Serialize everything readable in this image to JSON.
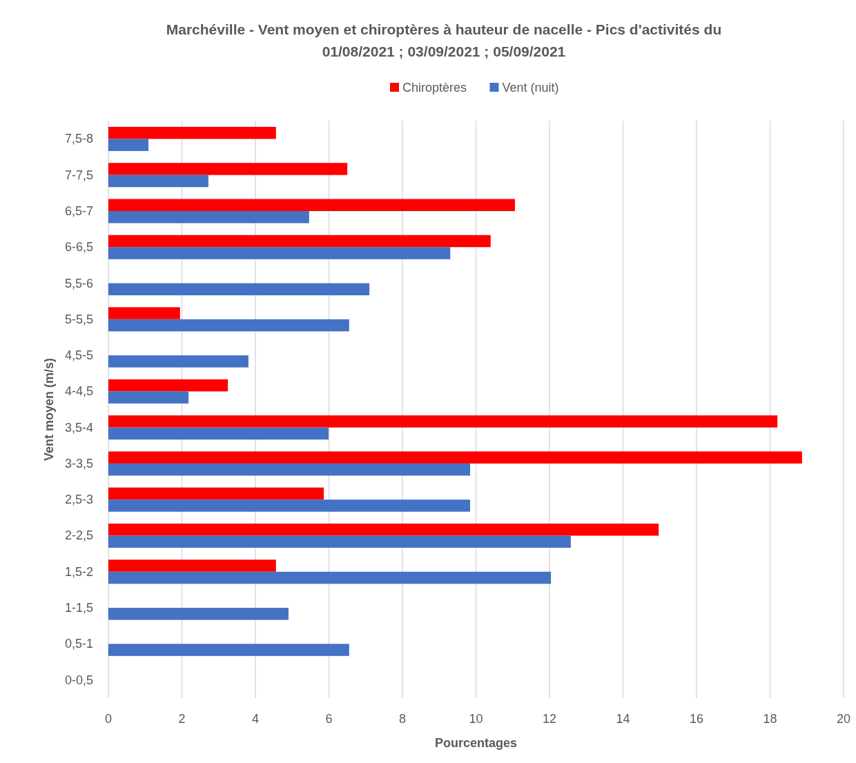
{
  "chart_data": {
    "type": "bar",
    "orientation": "horizontal",
    "title": "Marchéville - Vent moyen et chiroptères à hauteur de nacelle - Pics d'activités du 01/08/2021 ; 03/09/2021 ;  05/09/2021",
    "xlabel": "Pourcentages",
    "ylabel": "Vent moyen (m/s)",
    "categories": [
      "7,5-8",
      "7-7,5",
      "6,5-7",
      "6-6,5",
      "5,5-6",
      "5-5,5",
      "4,5-5",
      "4-4,5",
      "3,5-4",
      "3-3,5",
      "2,5-3",
      "2-2,5",
      "1,5-2",
      "1-1,5",
      "0,5-1",
      "0-0,5"
    ],
    "series": [
      {
        "name": "Chiroptères",
        "color": "#ff0000",
        "values": [
          4.56,
          6.5,
          11.06,
          10.4,
          0,
          1.95,
          0,
          3.25,
          18.2,
          18.87,
          5.86,
          14.97,
          4.56,
          0,
          0,
          0
        ]
      },
      {
        "name": "Vent (nuit)",
        "color": "#4472c4",
        "values": [
          1.09,
          2.72,
          5.46,
          9.3,
          7.1,
          6.55,
          3.81,
          2.18,
          5.99,
          9.84,
          9.84,
          12.58,
          12.04,
          4.9,
          6.55,
          0
        ]
      }
    ],
    "xlim": [
      0,
      20
    ],
    "xticks": [
      0,
      2,
      4,
      6,
      8,
      10,
      12,
      14,
      16,
      18,
      20
    ],
    "grid": "x",
    "legend": "top"
  }
}
